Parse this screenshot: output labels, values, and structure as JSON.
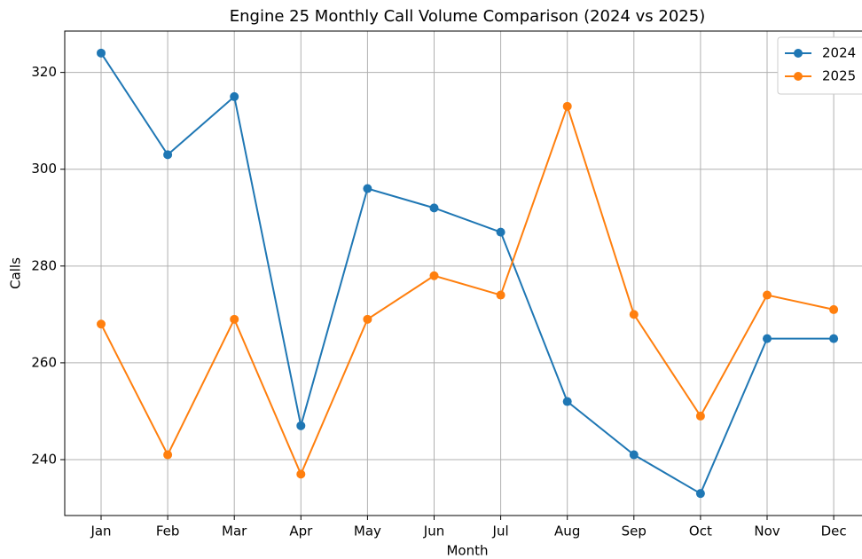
{
  "chart_data": {
    "type": "line",
    "title": "Engine 25 Monthly Call Volume Comparison (2024 vs 2025)",
    "x_label": "Month",
    "y_label": "Calls",
    "categories": [
      "Jan",
      "Feb",
      "Mar",
      "Apr",
      "May",
      "Jun",
      "Jul",
      "Aug",
      "Sep",
      "Oct",
      "Nov",
      "Dec"
    ],
    "series": [
      {
        "name": "2024",
        "color": "#1f77b4",
        "values": [
          324,
          303,
          315,
          247,
          296,
          292,
          287,
          252,
          241,
          233,
          265,
          265
        ]
      },
      {
        "name": "2025",
        "color": "#ff7f0e",
        "values": [
          268,
          241,
          269,
          237,
          269,
          278,
          274,
          313,
          270,
          249,
          274,
          271
        ]
      }
    ],
    "ylim": [
      228.45,
      328.55
    ],
    "yticks": [
      240,
      260,
      280,
      300,
      320
    ],
    "grid": true,
    "legend": "upper right"
  }
}
